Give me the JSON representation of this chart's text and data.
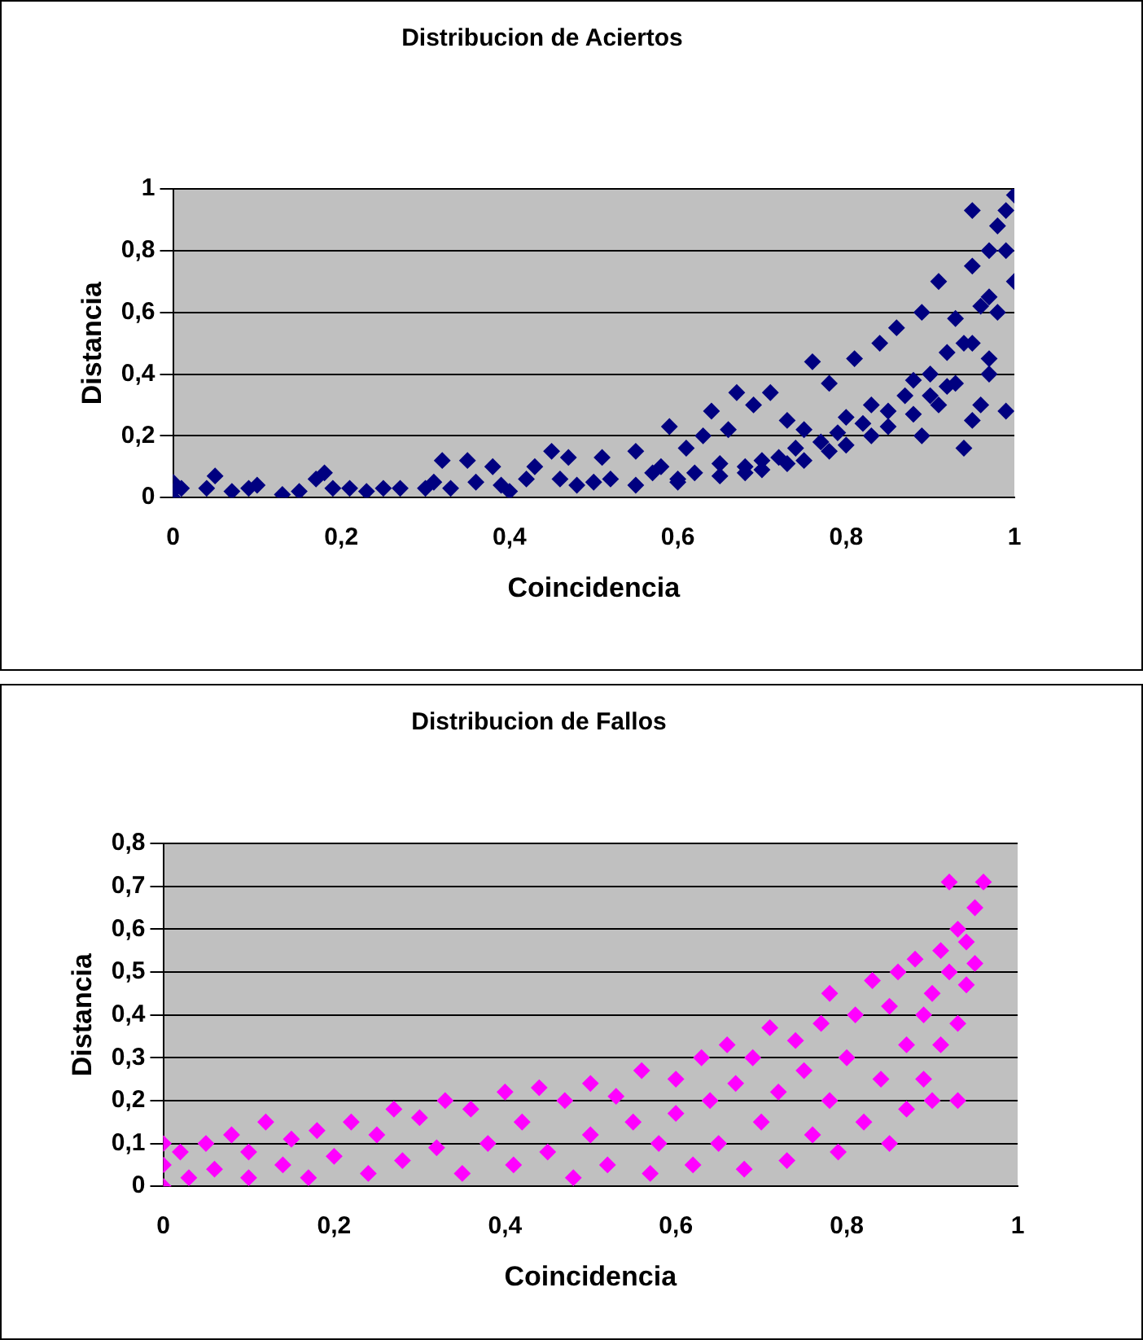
{
  "chart_data": [
    {
      "type": "scatter",
      "title": "Distribucion de Aciertos",
      "xlabel": "Coincidencia",
      "ylabel": "Distancia",
      "marker": "diamond",
      "grid": "y",
      "legend": false,
      "xlim": [
        0,
        1
      ],
      "xticks": [
        {
          "value": 0,
          "label": "0"
        },
        {
          "value": 0.2,
          "label": "0,2"
        },
        {
          "value": 0.4,
          "label": "0,4"
        },
        {
          "value": 0.6,
          "label": "0,6"
        },
        {
          "value": 0.8,
          "label": "0,8"
        },
        {
          "value": 1,
          "label": "1"
        }
      ],
      "ylim": [
        0,
        1
      ],
      "yticks": [
        {
          "value": 0,
          "label": "0"
        },
        {
          "value": 0.2,
          "label": "0,2"
        },
        {
          "value": 0.4,
          "label": "0,4"
        },
        {
          "value": 0.6,
          "label": "0,6"
        },
        {
          "value": 0.8,
          "label": "0,8"
        },
        {
          "value": 1,
          "label": "1"
        }
      ],
      "series": [
        {
          "color": "#000080",
          "x": [
            0,
            0,
            0,
            0.01,
            0.04,
            0.05,
            0.07,
            0.09,
            0.1,
            0.13,
            0.15,
            0.17,
            0.18,
            0.19,
            0.21,
            0.23,
            0.25,
            0.27,
            0.3,
            0.31,
            0.32,
            0.33,
            0.35,
            0.36,
            0.38,
            0.39,
            0.4,
            0.42,
            0.43,
            0.45,
            0.46,
            0.47,
            0.48,
            0.5,
            0.51,
            0.52,
            0.55,
            0.55,
            0.57,
            0.58,
            0.59,
            0.6,
            0.61,
            0.62,
            0.63,
            0.64,
            0.65,
            0.66,
            0.67,
            0.68,
            0.69,
            0.7,
            0.71,
            0.72,
            0.73,
            0.74,
            0.75,
            0.76,
            0.77,
            0.78,
            0.79,
            0.8,
            0.81,
            0.82,
            0.83,
            0.84,
            0.85,
            0.86,
            0.87,
            0.88,
            0.89,
            0.89,
            0.9,
            0.91,
            0.91,
            0.92,
            0.93,
            0.93,
            0.94,
            0.94,
            0.95,
            0.95,
            0.96,
            0.96,
            0.97,
            0.97,
            0.98,
            0.98,
            0.99,
            0.99,
            1,
            1,
            0.97,
            0.95,
            0.6,
            0.65,
            0.7,
            0.75,
            0.8,
            0.85,
            0.9,
            0.95,
            0.97,
            0.99,
            0.92,
            0.88,
            0.83,
            0.78,
            0.73,
            0.68
          ],
          "values": [
            0.02,
            0.05,
            0,
            0.03,
            0.03,
            0.07,
            0.02,
            0.03,
            0.04,
            0.01,
            0.02,
            0.06,
            0.08,
            0.03,
            0.03,
            0.02,
            0.03,
            0.03,
            0.03,
            0.05,
            0.12,
            0.03,
            0.12,
            0.05,
            0.1,
            0.04,
            0.02,
            0.06,
            0.1,
            0.15,
            0.06,
            0.13,
            0.04,
            0.05,
            0.13,
            0.06,
            0.04,
            0.15,
            0.08,
            0.1,
            0.23,
            0.06,
            0.16,
            0.08,
            0.2,
            0.28,
            0.11,
            0.22,
            0.34,
            0.1,
            0.3,
            0.12,
            0.34,
            0.13,
            0.25,
            0.16,
            0.22,
            0.44,
            0.18,
            0.37,
            0.21,
            0.26,
            0.45,
            0.24,
            0.3,
            0.5,
            0.28,
            0.55,
            0.33,
            0.38,
            0.2,
            0.6,
            0.4,
            0.3,
            0.7,
            0.47,
            0.37,
            0.58,
            0.16,
            0.5,
            0.75,
            0.25,
            0.62,
            0.3,
            0.8,
            0.45,
            0.88,
            0.6,
            0.93,
            0.28,
            0.98,
            0.7,
            0.4,
            0.93,
            0.05,
            0.07,
            0.09,
            0.12,
            0.17,
            0.23,
            0.33,
            0.5,
            0.65,
            0.8,
            0.36,
            0.27,
            0.2,
            0.15,
            0.11,
            0.08
          ]
        }
      ]
    },
    {
      "type": "scatter",
      "title": "Distribucion de Fallos",
      "xlabel": "Coincidencia",
      "ylabel": "Distancia",
      "marker": "diamond",
      "grid": "y",
      "legend": false,
      "xlim": [
        0,
        1
      ],
      "xticks": [
        {
          "value": 0,
          "label": "0"
        },
        {
          "value": 0.2,
          "label": "0,2"
        },
        {
          "value": 0.4,
          "label": "0,4"
        },
        {
          "value": 0.6,
          "label": "0,6"
        },
        {
          "value": 0.8,
          "label": "0,8"
        },
        {
          "value": 1,
          "label": "1"
        }
      ],
      "ylim": [
        0,
        0.8
      ],
      "yticks": [
        {
          "value": 0,
          "label": "0"
        },
        {
          "value": 0.1,
          "label": "0,1"
        },
        {
          "value": 0.2,
          "label": "0,2"
        },
        {
          "value": 0.3,
          "label": "0,3"
        },
        {
          "value": 0.4,
          "label": "0,4"
        },
        {
          "value": 0.5,
          "label": "0,5"
        },
        {
          "value": 0.6,
          "label": "0,6"
        },
        {
          "value": 0.7,
          "label": "0,7"
        },
        {
          "value": 0.8,
          "label": "0,8"
        }
      ],
      "series": [
        {
          "color": "#ff00ff",
          "x": [
            0,
            0,
            0,
            0.02,
            0.03,
            0.05,
            0.06,
            0.08,
            0.1,
            0.1,
            0.12,
            0.14,
            0.15,
            0.17,
            0.18,
            0.2,
            0.22,
            0.24,
            0.25,
            0.27,
            0.28,
            0.3,
            0.32,
            0.33,
            0.35,
            0.36,
            0.38,
            0.4,
            0.41,
            0.42,
            0.44,
            0.45,
            0.47,
            0.48,
            0.5,
            0.5,
            0.52,
            0.53,
            0.55,
            0.56,
            0.57,
            0.58,
            0.6,
            0.6,
            0.62,
            0.63,
            0.64,
            0.65,
            0.66,
            0.67,
            0.68,
            0.69,
            0.7,
            0.71,
            0.72,
            0.73,
            0.74,
            0.75,
            0.76,
            0.77,
            0.78,
            0.78,
            0.79,
            0.8,
            0.81,
            0.82,
            0.83,
            0.84,
            0.85,
            0.85,
            0.86,
            0.87,
            0.87,
            0.88,
            0.89,
            0.89,
            0.9,
            0.9,
            0.91,
            0.91,
            0.92,
            0.92,
            0.93,
            0.93,
            0.93,
            0.94,
            0.94,
            0.95,
            0.95,
            0.96
          ],
          "values": [
            0,
            0.05,
            0.1,
            0.08,
            0.02,
            0.1,
            0.04,
            0.12,
            0.02,
            0.08,
            0.15,
            0.05,
            0.11,
            0.02,
            0.13,
            0.07,
            0.15,
            0.03,
            0.12,
            0.18,
            0.06,
            0.16,
            0.09,
            0.2,
            0.03,
            0.18,
            0.1,
            0.22,
            0.05,
            0.15,
            0.23,
            0.08,
            0.2,
            0.02,
            0.24,
            0.12,
            0.05,
            0.21,
            0.15,
            0.27,
            0.03,
            0.1,
            0.25,
            0.17,
            0.05,
            0.3,
            0.2,
            0.1,
            0.33,
            0.24,
            0.04,
            0.3,
            0.15,
            0.37,
            0.22,
            0.06,
            0.34,
            0.27,
            0.12,
            0.38,
            0.2,
            0.45,
            0.08,
            0.3,
            0.4,
            0.15,
            0.48,
            0.25,
            0.1,
            0.42,
            0.5,
            0.33,
            0.18,
            0.53,
            0.4,
            0.25,
            0.45,
            0.2,
            0.55,
            0.33,
            0.71,
            0.5,
            0.6,
            0.38,
            0.2,
            0.47,
            0.57,
            0.65,
            0.52,
            0.71
          ]
        }
      ]
    }
  ]
}
